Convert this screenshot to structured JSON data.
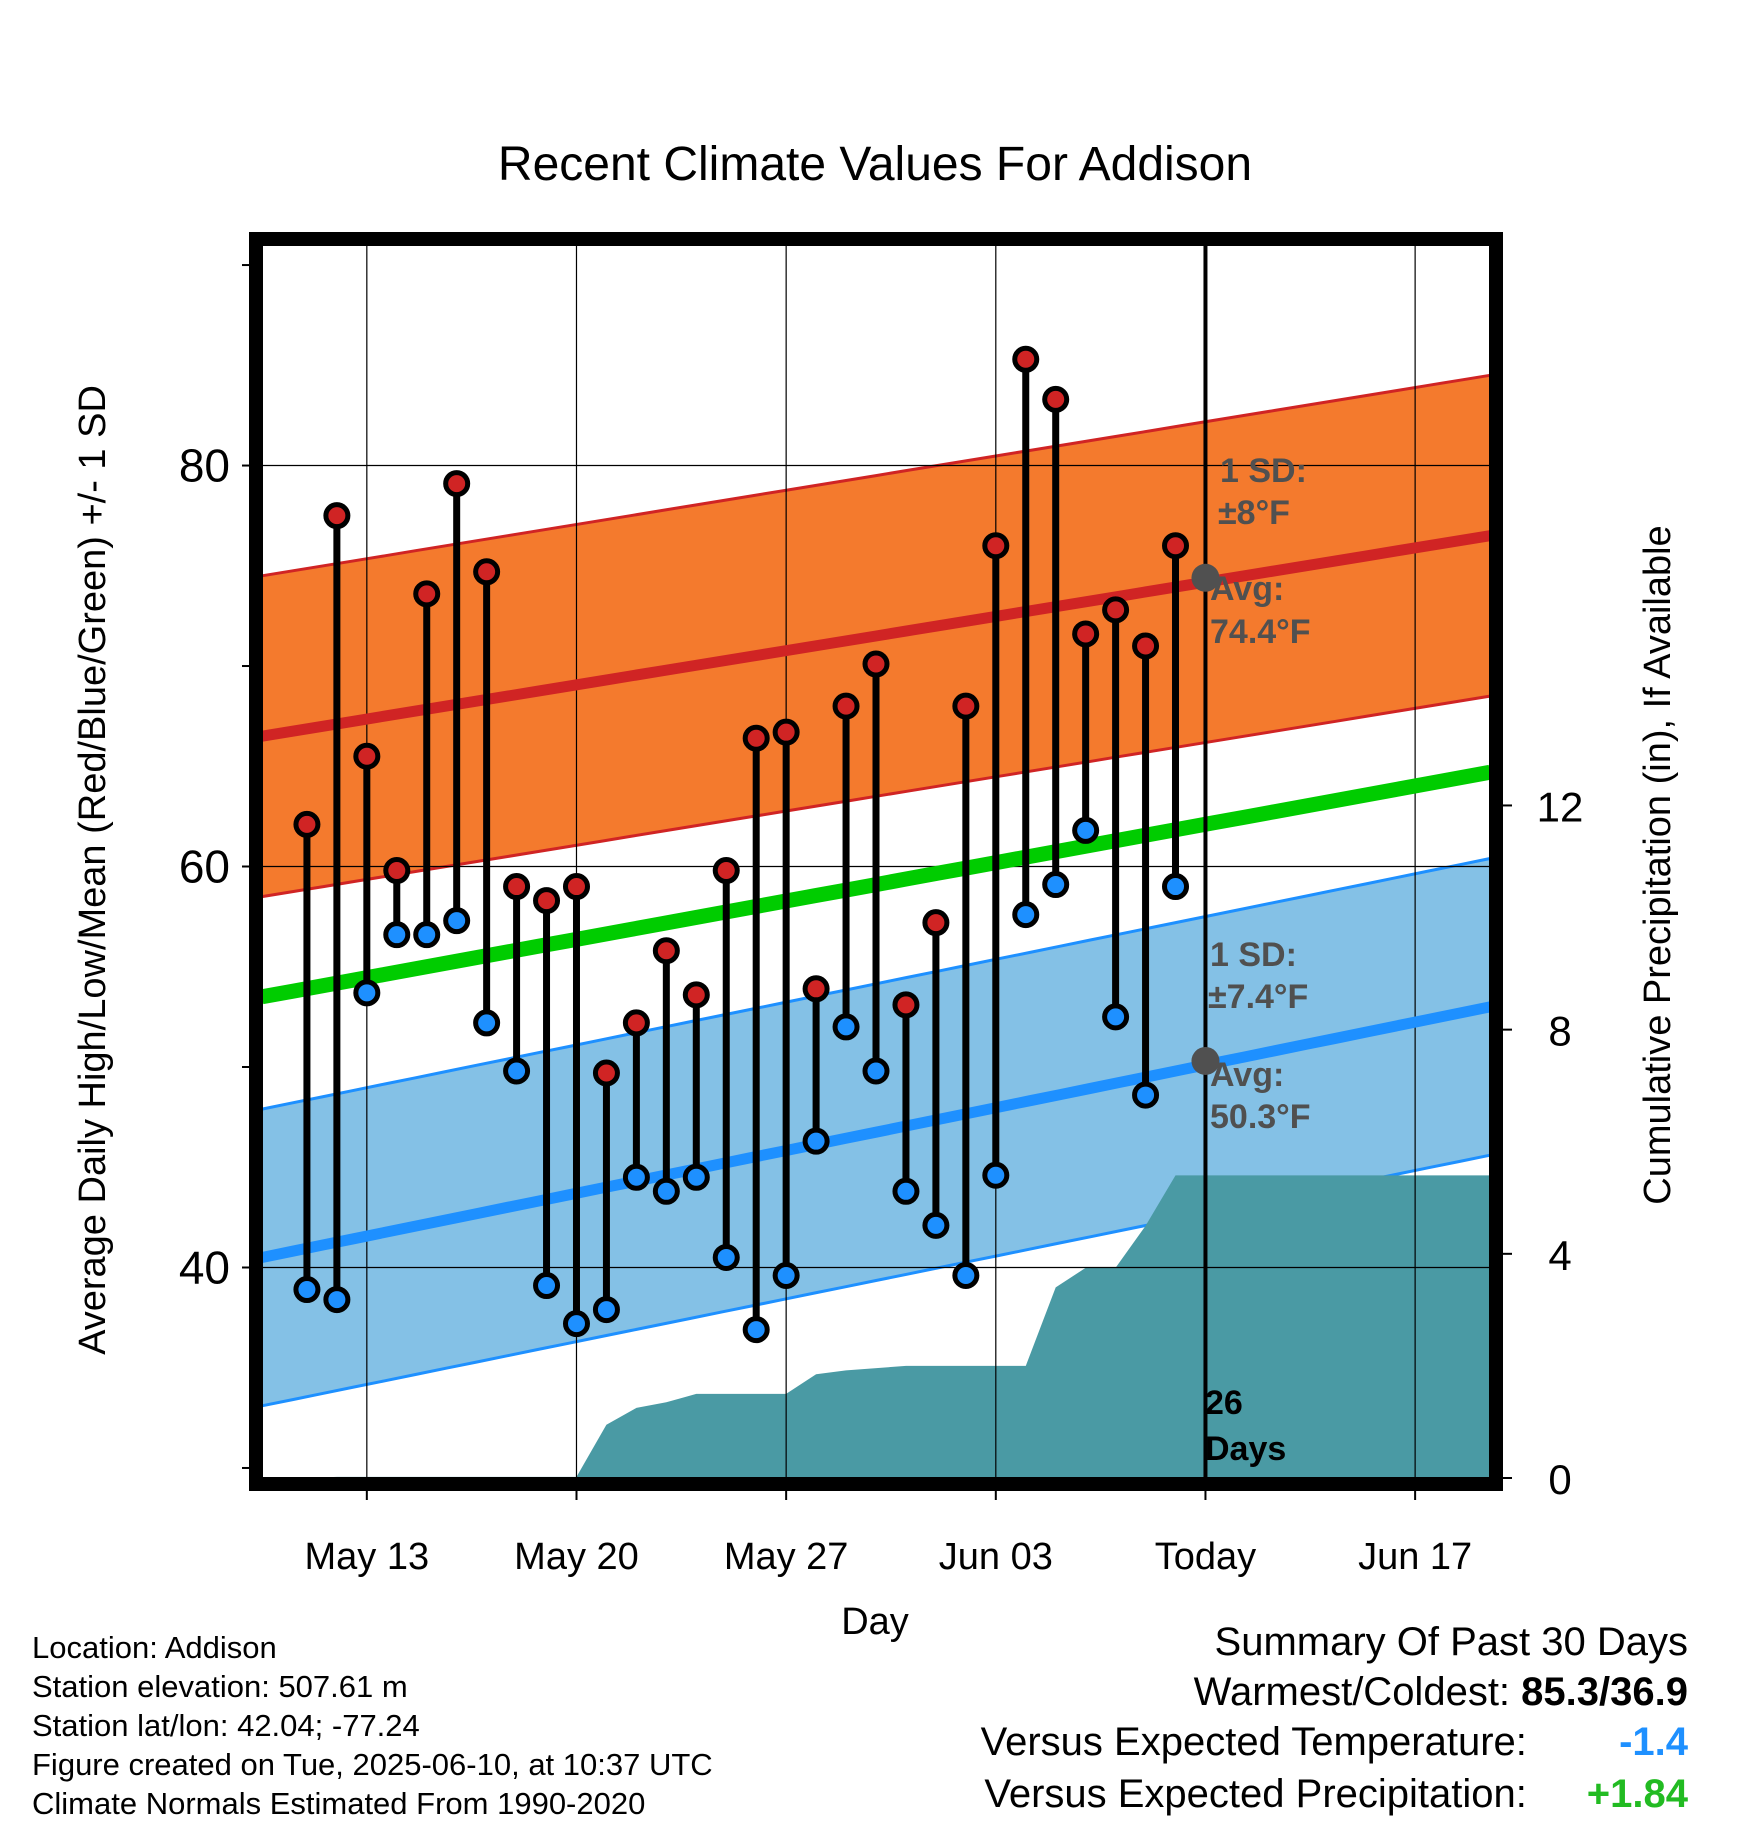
{
  "chart_data": {
    "type": "line",
    "title": "Recent Climate Values For Addison",
    "xlabel": "Day",
    "ylabel": "Average Daily High/Low/Mean (Red/Blue/Green) +/- 1 SD",
    "y2label": "Cumulative Precipitation (in), If Available",
    "x_tick_labels": [
      "May 13",
      "May 20",
      "May 27",
      "Jun 03",
      "Today",
      "Jun 17"
    ],
    "x_tick_dates": [
      "2025-05-13",
      "2025-05-20",
      "2025-05-27",
      "2025-06-03",
      "2025-06-10",
      "2025-06-17"
    ],
    "x_range": [
      "2025-05-09 12:00",
      "2025-06-19 12:00"
    ],
    "ylim": [
      29.5,
      91
    ],
    "y_ticks": [
      40,
      60,
      80
    ],
    "y2lim": [
      0,
      22
    ],
    "y2_ticks": [
      0,
      4,
      8,
      12
    ],
    "grid": true,
    "days": [
      "2025-05-11",
      "2025-05-12",
      "2025-05-13",
      "2025-05-14",
      "2025-05-15",
      "2025-05-16",
      "2025-05-17",
      "2025-05-18",
      "2025-05-19",
      "2025-05-20",
      "2025-05-21",
      "2025-05-22",
      "2025-05-23",
      "2025-05-24",
      "2025-05-25",
      "2025-05-26",
      "2025-05-27",
      "2025-05-28",
      "2025-05-29",
      "2025-05-30",
      "2025-05-31",
      "2025-06-01",
      "2025-06-02",
      "2025-06-03",
      "2025-06-04",
      "2025-06-05",
      "2025-06-06",
      "2025-06-07",
      "2025-06-08",
      "2025-06-09"
    ],
    "highs": [
      62.1,
      77.5,
      65.5,
      59.8,
      73.6,
      79.1,
      74.7,
      59.0,
      58.3,
      59.0,
      49.7,
      52.2,
      55.8,
      53.6,
      59.8,
      66.4,
      66.7,
      53.9,
      68.0,
      70.1,
      53.1,
      57.2,
      68.0,
      76.0,
      85.3,
      83.3,
      71.6,
      72.8,
      71.0,
      76.0
    ],
    "lows": [
      38.9,
      38.4,
      53.7,
      56.6,
      56.6,
      57.3,
      52.2,
      49.8,
      39.1,
      37.2,
      37.9,
      44.5,
      43.8,
      44.5,
      40.5,
      36.9,
      39.6,
      46.3,
      52.0,
      49.8,
      43.8,
      42.1,
      39.6,
      44.6,
      57.6,
      59.1,
      61.8,
      52.5,
      48.6,
      59.0
    ],
    "normal_high": {
      "start": 66.5,
      "end": 76.5,
      "sd": 8
    },
    "normal_low": {
      "start": 40.5,
      "end": 53.0,
      "sd": 7.4
    },
    "normal_mean": {
      "start": 53.5,
      "end": 64.7
    },
    "today_avg_high": 74.4,
    "today_avg_low": 50.3,
    "precip_cumulative": [
      [
        "2025-05-11",
        0.0
      ],
      [
        "2025-05-12",
        0.02
      ],
      [
        "2025-05-20",
        0.02
      ],
      [
        "2025-05-21",
        0.95
      ],
      [
        "2025-05-22",
        1.25
      ],
      [
        "2025-05-23",
        1.35
      ],
      [
        "2025-05-24",
        1.5
      ],
      [
        "2025-05-27",
        1.5
      ],
      [
        "2025-05-28",
        1.85
      ],
      [
        "2025-05-29",
        1.92
      ],
      [
        "2025-05-31",
        2.0
      ],
      [
        "2025-06-04",
        2.0
      ],
      [
        "2025-06-05",
        3.4
      ],
      [
        "2025-06-06",
        3.75
      ],
      [
        "2025-06-07",
        3.75
      ],
      [
        "2025-06-08",
        4.5
      ],
      [
        "2025-06-09",
        5.4
      ],
      [
        "2025-06-19 12:00",
        5.4
      ]
    ],
    "colors": {
      "high": "#d02424",
      "low": "#1e90ff",
      "mean": "#00cc00",
      "high_band": "#f47a2d",
      "low_band": "#84c1e6",
      "precip": "#4a9aa4",
      "marker_gray": "#505050"
    }
  },
  "annotations": {
    "high_sd": "1 SD:",
    "high_sd_val": "±8°F",
    "high_avg": "Avg:",
    "high_avg_val": "74.4°F",
    "low_sd": "1 SD:",
    "low_sd_val": "±7.4°F",
    "low_avg": "Avg:",
    "low_avg_val": "50.3°F",
    "days_num": "26",
    "days_word": "Days"
  },
  "meta": {
    "location": "Location: Addison",
    "elevation": "Station elevation: 507.61 m",
    "latlon": "Station lat/lon: 42.04; -77.24",
    "created": "Figure created on Tue, 2025-06-10, at 10:37 UTC",
    "normals": "Climate Normals Estimated From 1990-2020"
  },
  "summary": {
    "title": "Summary Of Past 30 Days",
    "warm_cold_label": "Warmest/Coldest:",
    "warm_cold_value": "85.3/36.9",
    "temp_label": "Versus Expected Temperature:",
    "temp_value": "-1.4",
    "temp_color": "#1e90ff",
    "precip_label": "Versus Expected Precipitation:",
    "precip_value": "+1.84",
    "precip_color": "#22bb22"
  }
}
